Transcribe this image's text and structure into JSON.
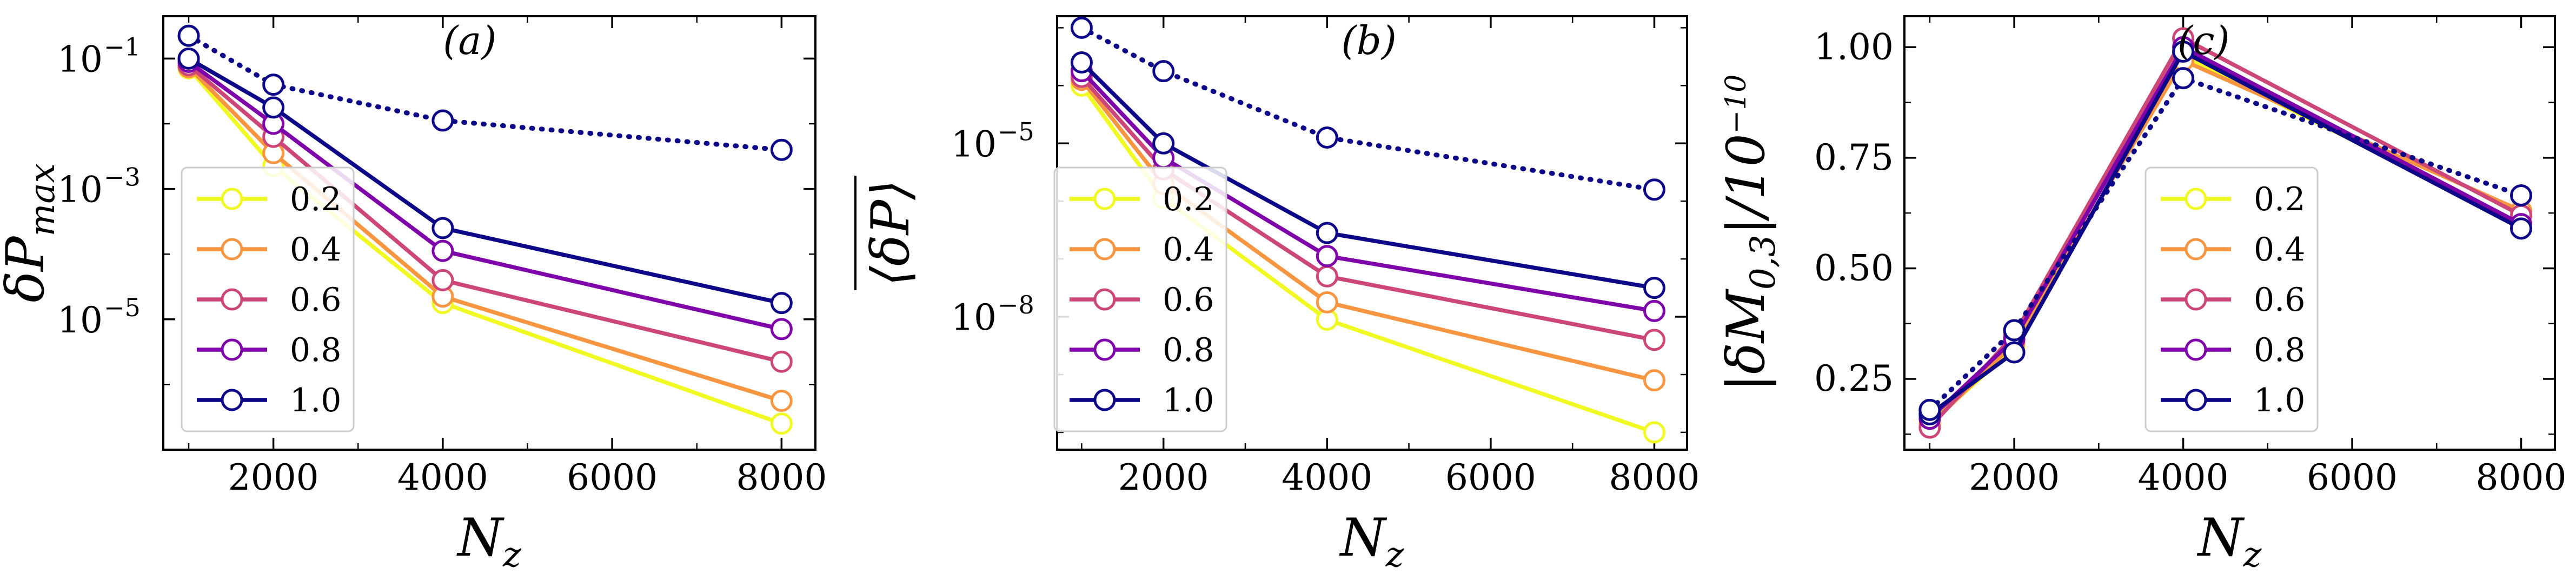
{
  "figure": {
    "colors": {
      "0.2": "#f0f921",
      "0.4": "#f89540",
      "0.6": "#cc4778",
      "0.8": "#7e03a8",
      "1.0": "#0d0887",
      "dotted": "#0d0887"
    }
  },
  "chart_data": [
    {
      "type": "line",
      "panel_label": "(a)",
      "ylabel": "δP_max",
      "ylabel_main": "δP",
      "ylabel_sub": "max",
      "xlabel": "N_z",
      "xlabel_main": "N",
      "xlabel_sub": "z",
      "yscale": "log",
      "xlim": [
        700,
        8400
      ],
      "ylim_log10": [
        -7.0,
        -0.35
      ],
      "x_ticks": [
        2000,
        4000,
        6000,
        8000
      ],
      "x_tick_labels": [
        "2000",
        "4000",
        "6000",
        "8000"
      ],
      "y_ticks_log10": [
        -5,
        -3,
        -1
      ],
      "y_tick_labels": [
        "10",
        "10",
        "10"
      ],
      "y_tick_exponents": [
        "−5",
        "−3",
        "−1"
      ],
      "x": [
        1000,
        2000,
        4000,
        8000
      ],
      "series": [
        {
          "name": "0.2",
          "style": "solid",
          "values_log10": [
            -1.15,
            -2.65,
            -4.75,
            -6.6
          ]
        },
        {
          "name": "0.4",
          "style": "solid",
          "values_log10": [
            -1.13,
            -2.45,
            -4.65,
            -6.25
          ]
        },
        {
          "name": "0.6",
          "style": "solid",
          "values_log10": [
            -1.1,
            -2.2,
            -4.4,
            -5.65
          ]
        },
        {
          "name": "0.8",
          "style": "solid",
          "values_log10": [
            -1.05,
            -2.0,
            -3.95,
            -5.15
          ]
        },
        {
          "name": "1.0",
          "style": "solid",
          "values_log10": [
            -1.0,
            -1.75,
            -3.6,
            -4.75
          ]
        },
        {
          "name": "",
          "style": "dotted",
          "values_log10": [
            -0.65,
            -1.4,
            -1.95,
            -2.4
          ]
        }
      ],
      "legend": [
        "0.2",
        "0.4",
        "0.6",
        "0.8",
        "1.0"
      ],
      "legend_position": "lower-left"
    },
    {
      "type": "line",
      "panel_label": "(b)",
      "ylabel": "⟨δP⟩ (overline)",
      "ylabel_main": "⟨δP⟩",
      "xlabel": "N_z",
      "xlabel_main": "N",
      "xlabel_sub": "z",
      "yscale": "log",
      "xlim": [
        700,
        8400
      ],
      "ylim_log10": [
        -10.3,
        -2.8
      ],
      "x_ticks": [
        2000,
        4000,
        6000,
        8000
      ],
      "x_tick_labels": [
        "2000",
        "4000",
        "6000",
        "8000"
      ],
      "y_ticks_log10": [
        -8,
        -5
      ],
      "y_tick_labels": [
        "10",
        "10"
      ],
      "y_tick_exponents": [
        "−8",
        "−5"
      ],
      "x": [
        1000,
        2000,
        4000,
        8000
      ],
      "series": [
        {
          "name": "0.2",
          "style": "solid",
          "values_log10": [
            -4.0,
            -5.95,
            -8.05,
            -10.0
          ]
        },
        {
          "name": "0.4",
          "style": "solid",
          "values_log10": [
            -3.9,
            -5.7,
            -7.75,
            -9.1
          ]
        },
        {
          "name": "0.6",
          "style": "solid",
          "values_log10": [
            -3.85,
            -5.45,
            -7.3,
            -8.4
          ]
        },
        {
          "name": "0.8",
          "style": "solid",
          "values_log10": [
            -3.75,
            -5.25,
            -6.95,
            -7.9
          ]
        },
        {
          "name": "1.0",
          "style": "solid",
          "values_log10": [
            -3.6,
            -5.0,
            -6.55,
            -7.5
          ]
        },
        {
          "name": "",
          "style": "dotted",
          "values_log10": [
            -3.0,
            -3.75,
            -4.9,
            -5.8
          ]
        }
      ],
      "legend": [
        "0.2",
        "0.4",
        "0.6",
        "0.8",
        "1.0"
      ],
      "legend_position": "lower-left"
    },
    {
      "type": "line",
      "panel_label": "(c)",
      "ylabel": "|δM_0,3|/10^−10",
      "ylabel_main": "|δM",
      "ylabel_sub": "0,3",
      "ylabel_tail": "|/10",
      "ylabel_exp": "−10",
      "xlabel": "N_z",
      "xlabel_main": "N",
      "xlabel_sub": "z",
      "yscale": "linear",
      "xlim": [
        700,
        8400
      ],
      "ylim": [
        0.09,
        1.07
      ],
      "x_ticks": [
        2000,
        4000,
        6000,
        8000
      ],
      "x_tick_labels": [
        "2000",
        "4000",
        "6000",
        "8000"
      ],
      "y_ticks": [
        0.25,
        0.5,
        0.75,
        1.0
      ],
      "y_tick_labels": [
        "0.25",
        "0.50",
        "0.75",
        "1.00"
      ],
      "x": [
        1000,
        2000,
        4000,
        8000
      ],
      "series": [
        {
          "name": "0.2",
          "style": "solid",
          "values": [
            0.15,
            0.32,
            0.98,
            0.6
          ]
        },
        {
          "name": "0.4",
          "style": "solid",
          "values": [
            0.145,
            0.33,
            0.97,
            0.63
          ]
        },
        {
          "name": "0.6",
          "style": "solid",
          "values": [
            0.14,
            0.35,
            1.02,
            0.62
          ]
        },
        {
          "name": "0.8",
          "style": "solid",
          "values": [
            0.16,
            0.34,
            1.0,
            0.6
          ]
        },
        {
          "name": "1.0",
          "style": "solid",
          "values": [
            0.17,
            0.31,
            0.99,
            0.59
          ]
        },
        {
          "name": "",
          "style": "dotted",
          "values": [
            0.18,
            0.36,
            0.93,
            0.665
          ]
        }
      ],
      "legend": [
        "0.2",
        "0.4",
        "0.6",
        "0.8",
        "1.0"
      ],
      "legend_position": "center-right"
    }
  ]
}
